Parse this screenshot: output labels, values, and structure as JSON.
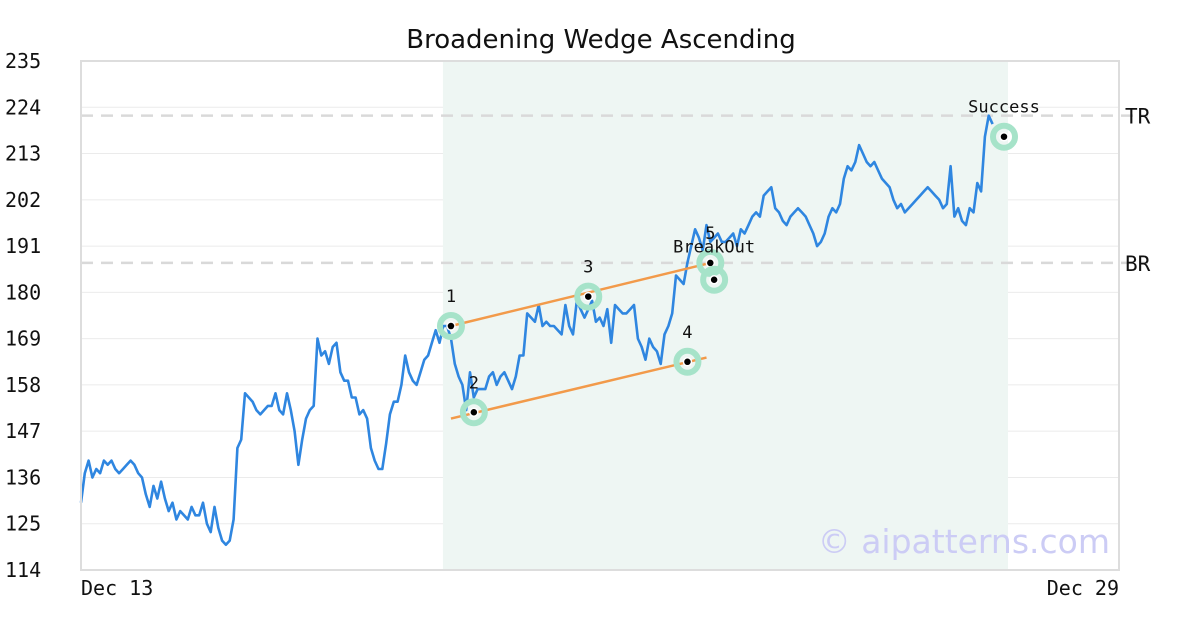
{
  "chart_data": {
    "type": "line",
    "title": "Broadening Wedge Ascending",
    "watermark": "© aipatterns.com",
    "x_tick_labels": [
      "Dec 13",
      "Dec 29"
    ],
    "ylim": [
      114,
      235
    ],
    "y_ticks": [
      114,
      125,
      136,
      147,
      158,
      169,
      180,
      191,
      202,
      213,
      224,
      235
    ],
    "grid": "horizontal",
    "colors": {
      "price": "#2f86e0",
      "trendline": "#f29a4a",
      "marker_ring": "#a6e3c9",
      "pattern_region": "#eef6f3",
      "level_line": "#d9d9d9",
      "frame": "#dddddd"
    },
    "series": [
      {
        "values": [
          130,
          137,
          140,
          136,
          138,
          137,
          140,
          139,
          140,
          138,
          137,
          138,
          139,
          140,
          139,
          137,
          136,
          132,
          129,
          134,
          131,
          135,
          131,
          128,
          130,
          126,
          128,
          127,
          126,
          129,
          127,
          127,
          130,
          125,
          123,
          129,
          124,
          121,
          120,
          121,
          126,
          143,
          145,
          156,
          155,
          154,
          152,
          151,
          152,
          153,
          153,
          156,
          152,
          151,
          156,
          152,
          147,
          139,
          145,
          150,
          152,
          153,
          169,
          165,
          166,
          163,
          167,
          168,
          161,
          159,
          159,
          155,
          155,
          151,
          152,
          150,
          143,
          140,
          138,
          138,
          144,
          151,
          154,
          154,
          158,
          165,
          161,
          159,
          158,
          161,
          164,
          165,
          168,
          171,
          168,
          172,
          172,
          169,
          163,
          160,
          158,
          152,
          161,
          155,
          157,
          157,
          157,
          160,
          161,
          158,
          160,
          161,
          159,
          157,
          160,
          165,
          165,
          175,
          174,
          173,
          177,
          172,
          173,
          172,
          172,
          171,
          170,
          177,
          172,
          170,
          178,
          176,
          174,
          176,
          178,
          173,
          174,
          172,
          176,
          168,
          177,
          176,
          175,
          175,
          176,
          177,
          169,
          167,
          164,
          169,
          167,
          166,
          163,
          170,
          172,
          175,
          184,
          183,
          182,
          187,
          191,
          195,
          193,
          190,
          196,
          192,
          193,
          194,
          192,
          192,
          193,
          194,
          191,
          195,
          194,
          196,
          198,
          199,
          198,
          203,
          204,
          205,
          200,
          199,
          197,
          196,
          198,
          199,
          200,
          199,
          198,
          196,
          194,
          191,
          192,
          194,
          198,
          200,
          199,
          201,
          207,
          210,
          209,
          211,
          215,
          213,
          211,
          210,
          211,
          209,
          207,
          206,
          205,
          202,
          200,
          201,
          199,
          200,
          201,
          202,
          203,
          204,
          205,
          204,
          203,
          202,
          200,
          201,
          210,
          198,
          200,
          197,
          196,
          200,
          199,
          206,
          204,
          217,
          222,
          220
        ],
        "x_start_day": 0,
        "x_end_day": 16
      }
    ],
    "pattern": {
      "region_start_index": 97,
      "region_end_index": 242,
      "points": [
        {
          "label": "1",
          "index": 97,
          "value": 172
        },
        {
          "label": "2",
          "index": 103,
          "value": 151.5
        },
        {
          "label": "3",
          "index": 133,
          "value": 179
        },
        {
          "label": "4",
          "index": 159,
          "value": 163.5
        },
        {
          "label": "5",
          "index": 165,
          "value": 187
        }
      ],
      "events": [
        {
          "label": "BreakOut",
          "index": 166,
          "value": 183
        },
        {
          "label": "Success",
          "index": 242,
          "value": 217
        }
      ],
      "upper_trendline": [
        {
          "index": 97,
          "value": 172
        },
        {
          "index": 165,
          "value": 187
        }
      ],
      "lower_trendline": [
        {
          "index": 97,
          "value": 150
        },
        {
          "index": 164,
          "value": 164.5
        }
      ],
      "levels": [
        {
          "label": "TR",
          "value": 222
        },
        {
          "label": "BR",
          "value": 187
        }
      ]
    }
  }
}
